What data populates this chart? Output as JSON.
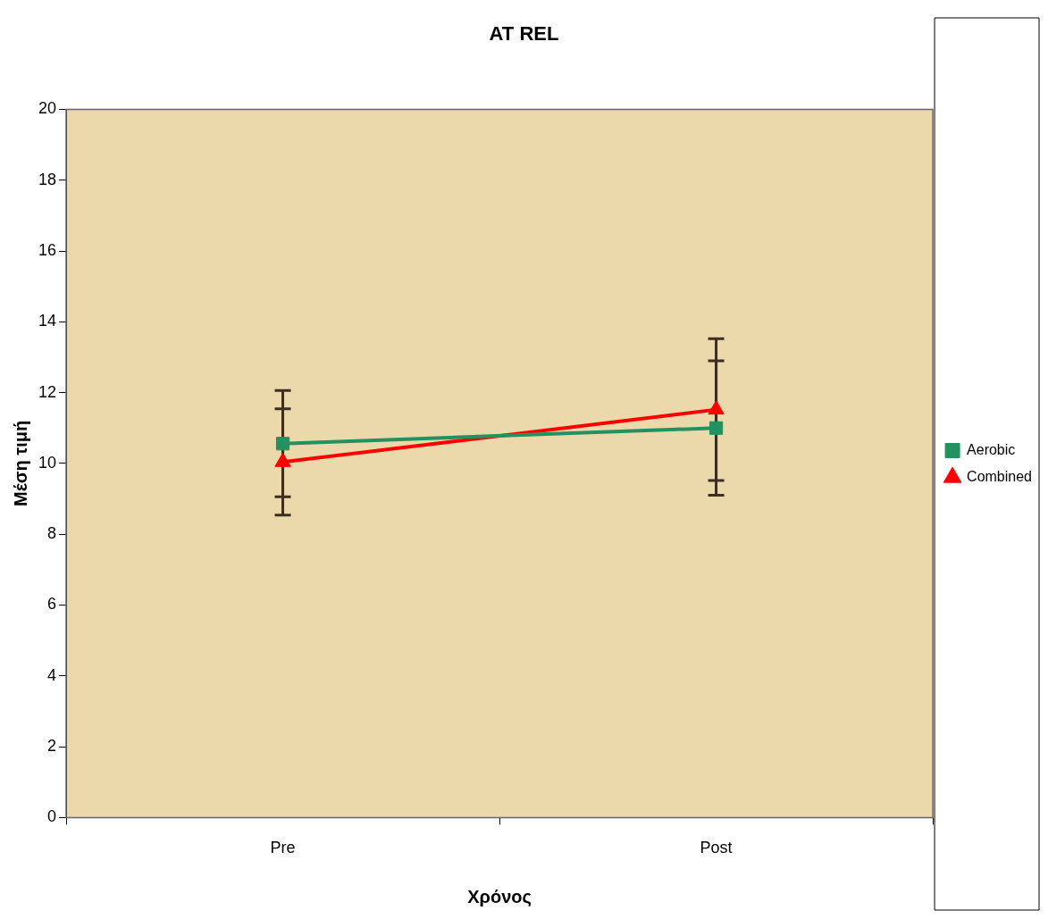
{
  "chart_data": {
    "type": "line",
    "title": "AT REL",
    "xlabel": "Χρόνος",
    "ylabel": "Μέση τιμή",
    "categories": [
      "Pre",
      "Post"
    ],
    "ylim": [
      0,
      20
    ],
    "yticks": [
      0,
      2,
      4,
      6,
      8,
      10,
      12,
      14,
      16,
      18,
      20
    ],
    "grid": false,
    "legend": "right",
    "line_style": "solid",
    "series": [
      {
        "name": "Aerobic",
        "color": "#239160",
        "marker": "square",
        "values": [
          10.56,
          11.0
        ],
        "errors": [
          1.5,
          1.9
        ]
      },
      {
        "name": "Combined",
        "color": "#ff0000",
        "marker": "triangle",
        "values": [
          10.04,
          11.52
        ],
        "errors": [
          1.5,
          2.0
        ]
      }
    ]
  }
}
